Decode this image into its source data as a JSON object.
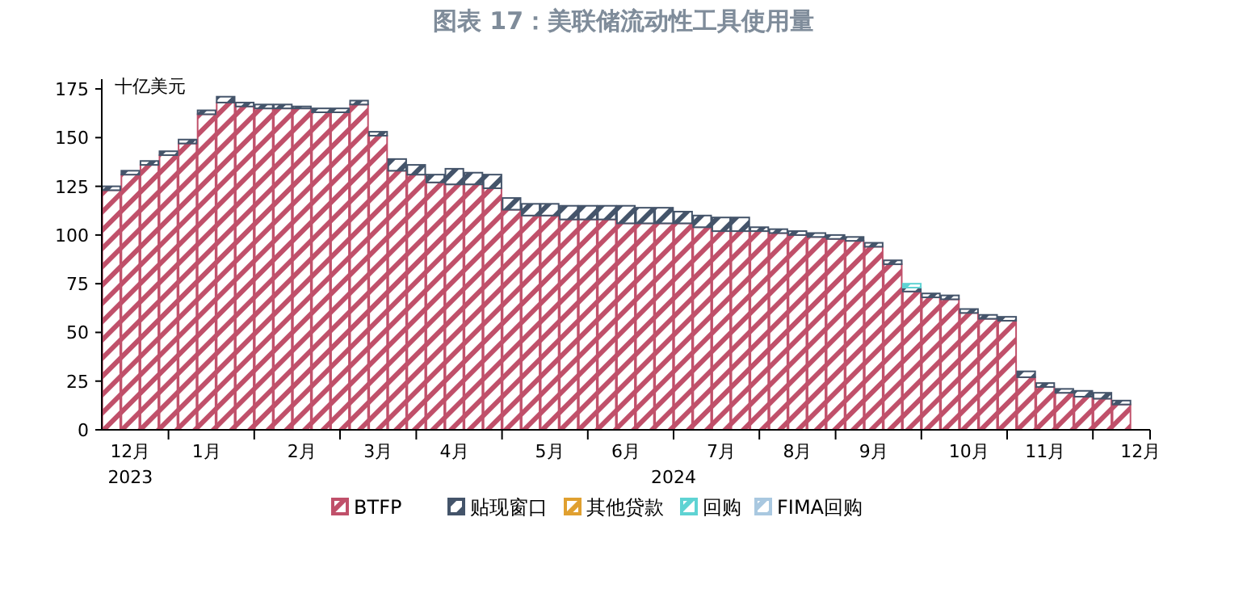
{
  "chart_data": {
    "type": "bar",
    "stacked": true,
    "title": "图表 17：美联储流动性工具使用量",
    "ylabel": "十亿美元",
    "categories": [
      null,
      "12月",
      null,
      null,
      null,
      "1月",
      null,
      null,
      null,
      null,
      "2月",
      null,
      null,
      null,
      "3月",
      null,
      null,
      null,
      "4月",
      null,
      null,
      null,
      null,
      "5月",
      null,
      null,
      null,
      "6月",
      null,
      null,
      null,
      null,
      "7月",
      null,
      null,
      null,
      "8月",
      null,
      null,
      null,
      "9月",
      null,
      null,
      null,
      null,
      "10月",
      null,
      null,
      null,
      "11月",
      null,
      null,
      null,
      null,
      "12月"
    ],
    "series": [
      {
        "name": "BTFP",
        "color": "#c0506a",
        "values": [
          123,
          131,
          136,
          141,
          147,
          162,
          168,
          166,
          165,
          165,
          165,
          163,
          163,
          167,
          151,
          133,
          131,
          127,
          126,
          126,
          124,
          113,
          110,
          110,
          108,
          108,
          108,
          106,
          106,
          106,
          106,
          104,
          102,
          102,
          102,
          101,
          100,
          99,
          98,
          97,
          94,
          85,
          71,
          68,
          67,
          60,
          57,
          56,
          27,
          22,
          19,
          17,
          16,
          13,
          null
        ]
      },
      {
        "name": "贴现窗口",
        "color": "#44546a",
        "values": [
          2,
          2,
          2,
          2,
          2,
          2,
          3,
          2,
          2,
          2,
          1,
          2,
          2,
          2,
          2,
          6,
          5,
          4,
          8,
          6,
          7,
          6,
          6,
          6,
          7,
          7,
          7,
          9,
          8,
          8,
          6,
          6,
          7,
          7,
          2,
          2,
          2,
          2,
          2,
          2,
          2,
          2,
          2,
          2,
          2,
          2,
          2,
          2,
          3,
          2,
          2,
          3,
          3,
          2,
          null
        ]
      },
      {
        "name": "其他贷款",
        "color": "#e0a030",
        "values": [
          0,
          0,
          0,
          0,
          0,
          0,
          0,
          0,
          0,
          0,
          0,
          0,
          0,
          0,
          0,
          0,
          0,
          0,
          0,
          0,
          0,
          0,
          0,
          0,
          0,
          0,
          0,
          0,
          0,
          0,
          0,
          0,
          0,
          0,
          0,
          0,
          0,
          0,
          0,
          0,
          0,
          0,
          0,
          0,
          0,
          0,
          0,
          0,
          0,
          0,
          0,
          0,
          0,
          0,
          null
        ]
      },
      {
        "name": "回购",
        "color": "#5fd3d3",
        "values": [
          0,
          0,
          0,
          0,
          0,
          0,
          0,
          0,
          0,
          0,
          0,
          0,
          0,
          0,
          0,
          0,
          0,
          0,
          0,
          0,
          0,
          0,
          0,
          0,
          0,
          0,
          0,
          0,
          0,
          0,
          0,
          0,
          0,
          0,
          0,
          0,
          0,
          0,
          0,
          0,
          0,
          0,
          2,
          0,
          0,
          0,
          0,
          0,
          0,
          0,
          0,
          0,
          0,
          0,
          null
        ]
      },
      {
        "name": "FIMA回购",
        "color": "#a9c8e0",
        "values": [
          0,
          0,
          0,
          0,
          0,
          0,
          0,
          0,
          0,
          0,
          0,
          0,
          0,
          0,
          0,
          0,
          0,
          0,
          0,
          0,
          0,
          0,
          0,
          0,
          0,
          0,
          0,
          0,
          0,
          0,
          0,
          0,
          0,
          0,
          0,
          0,
          0,
          0,
          0,
          0,
          0,
          0,
          0,
          0,
          0,
          0,
          0,
          0,
          0,
          0,
          0,
          0,
          0,
          0,
          null
        ]
      }
    ],
    "annotations": [
      "2023",
      "2024"
    ],
    "ylim": [
      0,
      180
    ],
    "yticks": [
      0,
      25,
      50,
      75,
      100,
      125,
      150,
      175
    ],
    "grid": false,
    "legend": "bottom"
  }
}
